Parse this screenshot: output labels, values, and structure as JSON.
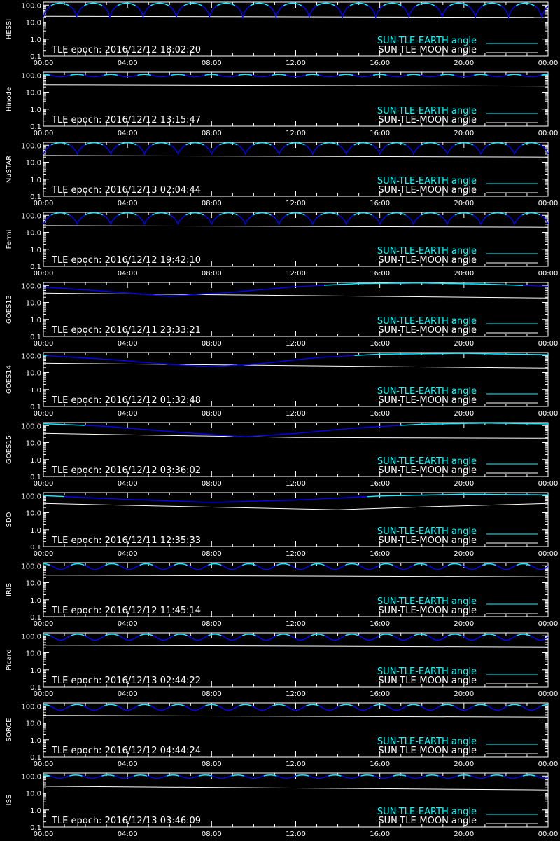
{
  "colors": {
    "background": "#000000",
    "axes": "#ffffff",
    "earth_sunlit": "#00ffff",
    "earth_shadow": "#0000ff",
    "moon": "#ffffff"
  },
  "chart_data": [
    {
      "type": "line",
      "panel_label": "HESSI",
      "tle_label": "TLE epoch: 2016/12/12 18:02:20",
      "x_ticks": [
        "00:00",
        "04:00",
        "08:00",
        "12:00",
        "16:00",
        "20:00",
        "00:00"
      ],
      "x_range_hours": [
        0,
        24
      ],
      "y_scale": "log",
      "ylim": [
        0.1,
        150
      ],
      "y_ticks": [
        "100.0",
        "10.0",
        "1.0",
        "0.1"
      ],
      "series": [
        {
          "name": "SUN-TLE-EARTH angle",
          "color": "#00ffff",
          "orbit_period_hours": 1.58,
          "max_angle": 130,
          "min_angle": 20,
          "shape": "arch"
        },
        {
          "name": "SUN-TLE-MOON angle",
          "color": "#ffffff",
          "x": [
            0,
            24
          ],
          "y": [
            22,
            19
          ]
        }
      ]
    },
    {
      "type": "line",
      "panel_label": "Hinode",
      "tle_label": "TLE epoch: 2016/12/12 13:15:47",
      "x_ticks": [
        "00:00",
        "04:00",
        "08:00",
        "12:00",
        "16:00",
        "20:00",
        "00:00"
      ],
      "x_range_hours": [
        0,
        24
      ],
      "y_scale": "log",
      "ylim": [
        0.1,
        150
      ],
      "y_ticks": [
        "100.0",
        "10.0",
        "1.0",
        "0.1"
      ],
      "series": [
        {
          "name": "SUN-TLE-EARTH angle",
          "color": "#00ffff",
          "orbit_period_hours": 1.6,
          "max_angle": 110,
          "min_angle": 80,
          "shape": "wave"
        },
        {
          "name": "SUN-TLE-MOON angle",
          "color": "#ffffff",
          "x": [
            0,
            24
          ],
          "y": [
            28,
            23
          ]
        }
      ]
    },
    {
      "type": "line",
      "panel_label": "NuSTAR",
      "tle_label": "TLE epoch: 2016/12/13 02:04:44",
      "x_ticks": [
        "00:00",
        "04:00",
        "08:00",
        "12:00",
        "16:00",
        "20:00",
        "00:00"
      ],
      "x_range_hours": [
        0,
        24
      ],
      "y_scale": "log",
      "ylim": [
        0.1,
        150
      ],
      "y_ticks": [
        "100.0",
        "10.0",
        "1.0",
        "0.1"
      ],
      "series": [
        {
          "name": "SUN-TLE-EARTH angle",
          "color": "#00ffff",
          "orbit_period_hours": 1.6,
          "max_angle": 140,
          "min_angle": 30,
          "shape": "arch"
        },
        {
          "name": "SUN-TLE-MOON angle",
          "color": "#ffffff",
          "x": [
            0,
            24
          ],
          "y": [
            25,
            20
          ]
        }
      ]
    },
    {
      "type": "line",
      "panel_label": "Fermi",
      "tle_label": "TLE epoch: 2016/12/12 19:42:10",
      "x_ticks": [
        "00:00",
        "04:00",
        "08:00",
        "12:00",
        "16:00",
        "20:00",
        "00:00"
      ],
      "x_range_hours": [
        0,
        24
      ],
      "y_scale": "log",
      "ylim": [
        0.1,
        150
      ],
      "y_ticks": [
        "100.0",
        "10.0",
        "1.0",
        "0.1"
      ],
      "series": [
        {
          "name": "SUN-TLE-EARTH angle",
          "color": "#00ffff",
          "orbit_period_hours": 1.6,
          "max_angle": 140,
          "min_angle": 30,
          "shape": "arch"
        },
        {
          "name": "SUN-TLE-MOON angle",
          "color": "#ffffff",
          "x": [
            0,
            24
          ],
          "y": [
            25,
            20
          ]
        }
      ]
    },
    {
      "type": "line",
      "panel_label": "GOES13",
      "tle_label": "TLE epoch: 2016/12/11 23:33:21",
      "x_ticks": [
        "00:00",
        "04:00",
        "08:00",
        "12:00",
        "16:00",
        "20:00",
        "00:00"
      ],
      "x_range_hours": [
        0,
        24
      ],
      "y_scale": "log",
      "ylim": [
        0.1,
        150
      ],
      "y_ticks": [
        "100.0",
        "10.0",
        "1.0",
        "0.1"
      ],
      "series": [
        {
          "name": "SUN-TLE-EARTH angle",
          "color": "#00ffff",
          "shape": "daily",
          "x": [
            0,
            3,
            6,
            9,
            12,
            15,
            18,
            21,
            24
          ],
          "y": [
            80,
            45,
            23,
            40,
            85,
            130,
            140,
            120,
            90
          ]
        },
        {
          "name": "SUN-TLE-MOON angle",
          "color": "#ffffff",
          "x": [
            0,
            24
          ],
          "y": [
            35,
            18
          ]
        }
      ]
    },
    {
      "type": "line",
      "panel_label": "GOES14",
      "tle_label": "TLE epoch: 2016/12/12 01:32:48",
      "x_ticks": [
        "00:00",
        "04:00",
        "08:00",
        "12:00",
        "16:00",
        "20:00",
        "00:00"
      ],
      "x_range_hours": [
        0,
        24
      ],
      "y_scale": "log",
      "ylim": [
        0.1,
        150
      ],
      "y_ticks": [
        "100.0",
        "10.0",
        "1.0",
        "0.1"
      ],
      "series": [
        {
          "name": "SUN-TLE-EARTH angle",
          "color": "#00ffff",
          "shape": "daily",
          "x": [
            0,
            3,
            6,
            8,
            10,
            13,
            16,
            20,
            24
          ],
          "y": [
            100,
            60,
            30,
            22,
            30,
            75,
            120,
            135,
            110
          ]
        },
        {
          "name": "SUN-TLE-MOON angle",
          "color": "#ffffff",
          "x": [
            0,
            24
          ],
          "y": [
            35,
            18
          ]
        }
      ]
    },
    {
      "type": "line",
      "panel_label": "GOES15",
      "tle_label": "TLE epoch: 2016/12/12 03:36:02",
      "x_ticks": [
        "00:00",
        "04:00",
        "08:00",
        "12:00",
        "16:00",
        "20:00",
        "00:00"
      ],
      "x_range_hours": [
        0,
        24
      ],
      "y_scale": "log",
      "ylim": [
        0.1,
        150
      ],
      "y_ticks": [
        "100.0",
        "10.0",
        "1.0",
        "0.1"
      ],
      "series": [
        {
          "name": "SUN-TLE-EARTH angle",
          "color": "#00ffff",
          "shape": "daily",
          "x": [
            0,
            3,
            6,
            9.5,
            12,
            15,
            18,
            21,
            24
          ],
          "y": [
            130,
            90,
            45,
            22,
            35,
            75,
            120,
            140,
            125
          ]
        },
        {
          "name": "SUN-TLE-MOON angle",
          "color": "#ffffff",
          "x": [
            0,
            12,
            24
          ],
          "y": [
            35,
            20,
            18
          ]
        }
      ]
    },
    {
      "type": "line",
      "panel_label": "SDO",
      "tle_label": "TLE epoch: 2016/12/11 12:35:33",
      "x_ticks": [
        "00:00",
        "04:00",
        "08:00",
        "12:00",
        "16:00",
        "20:00",
        "00:00"
      ],
      "x_range_hours": [
        0,
        24
      ],
      "y_scale": "log",
      "ylim": [
        0.1,
        150
      ],
      "y_ticks": [
        "100.0",
        "10.0",
        "1.0",
        "0.1"
      ],
      "series": [
        {
          "name": "SUN-TLE-EARTH angle",
          "color": "#00ffff",
          "shape": "daily",
          "x": [
            0,
            4,
            8,
            12,
            16,
            20,
            24
          ],
          "y": [
            100,
            60,
            40,
            55,
            95,
            120,
            110
          ]
        },
        {
          "name": "SUN-TLE-MOON angle",
          "color": "#ffffff",
          "x": [
            0,
            6,
            14,
            18,
            24
          ],
          "y": [
            35,
            24,
            15,
            22,
            35
          ]
        }
      ]
    },
    {
      "type": "line",
      "panel_label": "IRIS",
      "tle_label": "TLE epoch: 2016/12/12 11:45:14",
      "x_ticks": [
        "00:00",
        "04:00",
        "08:00",
        "12:00",
        "16:00",
        "20:00",
        "00:00"
      ],
      "x_range_hours": [
        0,
        24
      ],
      "y_scale": "log",
      "ylim": [
        0.1,
        150
      ],
      "y_ticks": [
        "100.0",
        "10.0",
        "1.0",
        "0.1"
      ],
      "series": [
        {
          "name": "SUN-TLE-EARTH angle",
          "color": "#00ffff",
          "orbit_period_hours": 1.63,
          "max_angle": 130,
          "min_angle": 60,
          "shape": "wave"
        },
        {
          "name": "SUN-TLE-MOON angle",
          "color": "#ffffff",
          "x": [
            0,
            24
          ],
          "y": [
            28,
            22
          ]
        }
      ]
    },
    {
      "type": "line",
      "panel_label": "Picard",
      "tle_label": "TLE epoch: 2016/12/13 02:44:22",
      "x_ticks": [
        "00:00",
        "04:00",
        "08:00",
        "12:00",
        "16:00",
        "20:00",
        "00:00"
      ],
      "x_range_hours": [
        0,
        24
      ],
      "y_scale": "log",
      "ylim": [
        0.1,
        150
      ],
      "y_ticks": [
        "100.0",
        "10.0",
        "1.0",
        "0.1"
      ],
      "series": [
        {
          "name": "SUN-TLE-EARTH angle",
          "color": "#00ffff",
          "orbit_period_hours": 1.63,
          "max_angle": 125,
          "min_angle": 55,
          "shape": "wave"
        },
        {
          "name": "SUN-TLE-MOON angle",
          "color": "#ffffff",
          "x": [
            0,
            24
          ],
          "y": [
            28,
            22
          ]
        }
      ]
    },
    {
      "type": "line",
      "panel_label": "SORCE",
      "tle_label": "TLE epoch: 2016/12/12 04:44:24",
      "x_ticks": [
        "00:00",
        "04:00",
        "08:00",
        "12:00",
        "16:00",
        "20:00",
        "00:00"
      ],
      "x_range_hours": [
        0,
        24
      ],
      "y_scale": "log",
      "ylim": [
        0.1,
        150
      ],
      "y_ticks": [
        "100.0",
        "10.0",
        "1.0",
        "0.1"
      ],
      "series": [
        {
          "name": "SUN-TLE-EARTH angle",
          "color": "#00ffff",
          "orbit_period_hours": 1.6,
          "max_angle": 120,
          "min_angle": 55,
          "shape": "wave"
        },
        {
          "name": "SUN-TLE-MOON angle",
          "color": "#ffffff",
          "x": [
            0,
            24
          ],
          "y": [
            28,
            22
          ]
        }
      ]
    },
    {
      "type": "line",
      "panel_label": "ISS",
      "tle_label": "TLE epoch: 2016/12/13 03:46:09",
      "x_ticks": [
        "00:00",
        "04:00",
        "08:00",
        "12:00",
        "16:00",
        "20:00",
        "00:00"
      ],
      "x_range_hours": [
        0,
        24
      ],
      "y_scale": "log",
      "ylim": [
        0.1,
        150
      ],
      "y_ticks": [
        "100.0",
        "10.0",
        "1.0",
        "0.1"
      ],
      "series": [
        {
          "name": "SUN-TLE-EARTH angle",
          "color": "#00ffff",
          "orbit_period_hours": 1.54,
          "max_angle": 115,
          "min_angle": 75,
          "shape": "wave"
        },
        {
          "name": "SUN-TLE-MOON angle",
          "color": "#ffffff",
          "x": [
            0,
            24
          ],
          "y": [
            25,
            15
          ]
        }
      ]
    }
  ]
}
